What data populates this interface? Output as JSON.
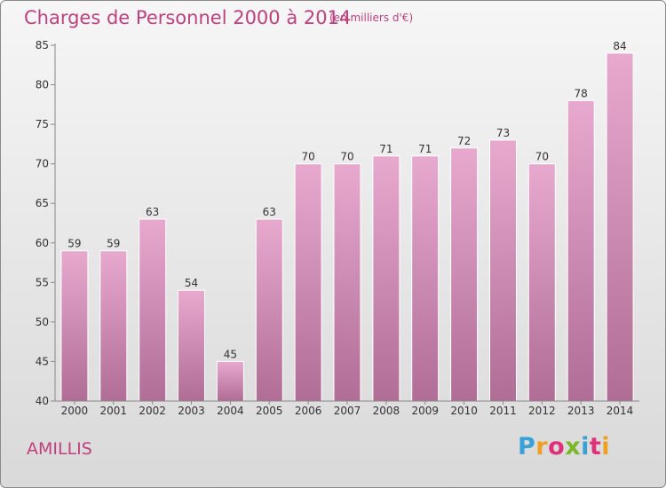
{
  "header": {
    "title": "Charges de Personnel 2000 à 2014",
    "subtitle": "(en milliers d'€)"
  },
  "footer": {
    "commune": "AMILLIS",
    "logo_text": "Proxiti",
    "logo_colors": [
      "#3aa0d8",
      "#f0a020",
      "#e0307a",
      "#7ab828",
      "#3aa0d8",
      "#e0307a",
      "#f0a020"
    ]
  },
  "colors": {
    "accent": "#c0407f",
    "bar_top": "#e8a9cf",
    "bar_bottom": "#b06d96"
  },
  "chart_data": {
    "type": "bar",
    "categories": [
      "2000",
      "2001",
      "2002",
      "2003",
      "2004",
      "2005",
      "2006",
      "2007",
      "2008",
      "2009",
      "2010",
      "2011",
      "2012",
      "2013",
      "2014"
    ],
    "values": [
      59,
      59,
      63,
      54,
      45,
      63,
      70,
      70,
      71,
      71,
      72,
      73,
      70,
      78,
      84
    ],
    "ylim": [
      40,
      85
    ],
    "yticks": [
      40,
      45,
      50,
      55,
      60,
      65,
      70,
      75,
      80,
      85
    ],
    "grid": false,
    "xlabel": "",
    "ylabel": ""
  }
}
